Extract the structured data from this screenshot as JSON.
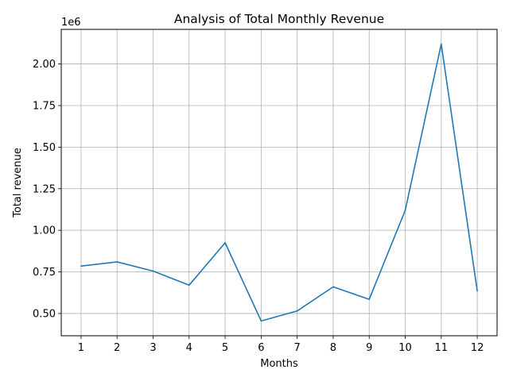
{
  "chart_data": {
    "type": "line",
    "title": "Analysis of Total Monthly Revenue",
    "xlabel": "Months",
    "ylabel": "Total revenue",
    "y_offset_label": "1e6",
    "x": [
      1,
      2,
      3,
      4,
      5,
      6,
      7,
      8,
      9,
      10,
      11,
      12
    ],
    "x_tick_labels": [
      "1",
      "2",
      "3",
      "4",
      "5",
      "6",
      "7",
      "8",
      "9",
      "10",
      "11",
      "12"
    ],
    "y_tick_values": [
      0.5,
      0.75,
      1.0,
      1.25,
      1.5,
      1.75,
      2.0
    ],
    "y_tick_labels": [
      "0.50",
      "0.75",
      "1.00",
      "1.25",
      "1.50",
      "1.75",
      "2.00"
    ],
    "series": [
      {
        "values": [
          785000,
          810000,
          755000,
          670000,
          925000,
          455000,
          515000,
          660000,
          585000,
          1120000,
          2120000,
          635000
        ],
        "color": "#1f77b4"
      }
    ],
    "xlim": [
      0.45,
      12.55
    ],
    "ylim": [
      366000,
      2208000
    ],
    "grid": true
  }
}
